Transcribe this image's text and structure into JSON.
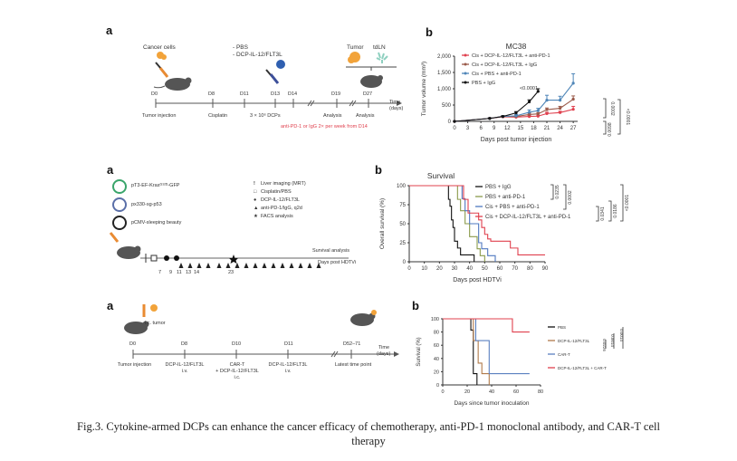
{
  "caption": {
    "line1": "Fig.3. Cytokine-armed DCPs can enhance the cancer efficacy of chemotherapy, anti-PD-1 monoclonal antibody, and CAR-T cell",
    "line2": "therapy"
  },
  "row1": {
    "a": {
      "letter": "a",
      "cancer_cells": "Cancer cells",
      "treatments": [
        "- PBS",
        "- DCP-IL-12/FLT3L"
      ],
      "tumor": "Tumor",
      "tdln": "tdLN",
      "timeline_days": [
        "D0",
        "D8",
        "D11",
        "D13",
        "D14",
        "D19",
        "D27"
      ],
      "time_label": [
        "Time",
        "(days)"
      ],
      "events": [
        "Tumor injection",
        "Cisplatin",
        "3 × 10⁶ DCPs",
        "Analysis",
        "Analysis"
      ],
      "note": "anti-PD-1 or IgG 2× per week from D14"
    },
    "b": {
      "letter": "b"
    }
  },
  "row2": {
    "a": {
      "letter": "a",
      "plasmids": [
        "pT3-EF-Krasᴳ¹²ᴰ-GFP",
        "px330-sg-p53",
        "pCMV-sleeping beauty"
      ],
      "plasmid_colors": [
        "#3aa56b",
        "#5a6fa8",
        "#222222"
      ],
      "legend": [
        {
          "icon": "exclamation-icon",
          "glyph": "!",
          "label": "Liver imaging (MRT)"
        },
        {
          "icon": "open-square-icon",
          "glyph": "□",
          "label": "Cisplatin/PBS"
        },
        {
          "icon": "filled-circle-icon",
          "glyph": "●",
          "label": "DCP-IL-12/FLT3L"
        },
        {
          "icon": "triangle-icon",
          "glyph": "▲",
          "label": "anti-PD-1/IgG, q2d"
        },
        {
          "icon": "star-icon",
          "glyph": "★",
          "label": "FACS analysis"
        }
      ],
      "survival_analysis": "Survival analysis",
      "days_label": "Days post HDTVi",
      "ticks": [
        "7",
        "9",
        "11",
        "13",
        "14",
        "23"
      ]
    },
    "b": {
      "letter": "b"
    }
  },
  "row3": {
    "a": {
      "letter": "a",
      "ic_tumor": "i.c. tumor",
      "days": [
        "D0",
        "D8",
        "D10",
        "D11",
        "D52–71"
      ],
      "time_label": [
        "Time",
        "(days)"
      ],
      "events": [
        [
          "Tumor injection"
        ],
        [
          "DCP-IL-12/FLT3L",
          "i.v."
        ],
        [
          "CAR-T",
          "+ DCP-IL-12/FLT3L",
          "i.c."
        ],
        [
          "DCP-IL-12/FLT3L",
          "i.v."
        ],
        [
          "Latest time point"
        ]
      ]
    },
    "b": {
      "letter": "b"
    }
  },
  "chart_data": [
    {
      "id": "tumor-volume",
      "type": "line",
      "title": "MC38",
      "xlabel": "Days post tumor injection",
      "ylabel": "Tumor volume (mm³)",
      "xlim": [
        0,
        28
      ],
      "ylim": [
        0,
        2000
      ],
      "xticks": [
        0,
        3,
        6,
        9,
        12,
        15,
        18,
        21,
        24,
        27
      ],
      "yticks": [
        0,
        500,
        1000,
        1500,
        2000
      ],
      "ytick_labels": [
        "0",
        "500",
        "1,000",
        "1,500",
        "2,000"
      ],
      "legend_position": "top-left",
      "series": [
        {
          "name": "Cis + DCP-IL-12/FLT3L + anti-PD-1",
          "color": "#e0404e",
          "x": [
            0,
            8,
            11,
            14,
            17,
            19,
            21,
            24,
            27
          ],
          "y": [
            0,
            90,
            140,
            130,
            150,
            160,
            240,
            270,
            370
          ],
          "err": [
            0,
            15,
            20,
            20,
            30,
            30,
            40,
            40,
            90
          ]
        },
        {
          "name": "Cis + DCP-IL-12/FLT3L + IgG",
          "color": "#9a5a4a",
          "x": [
            0,
            8,
            11,
            14,
            17,
            19,
            21,
            24,
            27
          ],
          "y": [
            0,
            90,
            150,
            150,
            210,
            230,
            360,
            400,
            680
          ],
          "err": [
            0,
            15,
            20,
            25,
            40,
            40,
            50,
            60,
            100
          ]
        },
        {
          "name": "Cis + PBS + anti-PD-1",
          "color": "#4f86b8",
          "x": [
            0,
            8,
            11,
            14,
            17,
            19,
            21,
            24,
            27
          ],
          "y": [
            0,
            90,
            150,
            170,
            280,
            330,
            650,
            650,
            1170
          ],
          "err": [
            0,
            15,
            25,
            40,
            70,
            70,
            150,
            120,
            290
          ]
        },
        {
          "name": "PBS + IgG",
          "color": "#111111",
          "x": [
            0,
            8,
            11,
            14,
            17,
            19
          ],
          "y": [
            0,
            90,
            150,
            260,
            600,
            920
          ],
          "err": [
            0,
            15,
            20,
            40,
            60,
            80
          ]
        }
      ],
      "annotations": [
        {
          "text": "<0.0001",
          "target": "PBS + IgG vs others"
        },
        {
          "text": "0.0002",
          "bracket": "Cis+PBS+anti-PD-1 vs Cis+DCP+anti-PD-1"
        },
        {
          "text": "0.0098",
          "bracket": "Cis+DCP+IgG vs Cis+DCP+anti-PD-1"
        },
        {
          "text": "<0.0001",
          "bracket": "outer"
        }
      ]
    },
    {
      "id": "survival-hdtvi",
      "type": "line",
      "step": true,
      "title": "Survival",
      "xlabel": "Days post HDTVi",
      "ylabel": "Overall survival (%)",
      "xlim": [
        0,
        90
      ],
      "ylim": [
        0,
        100
      ],
      "xticks": [
        0,
        10,
        20,
        30,
        40,
        50,
        60,
        70,
        80,
        90
      ],
      "yticks": [
        0,
        25,
        50,
        75,
        100
      ],
      "legend_position": "top-right",
      "series": [
        {
          "name": "PBS + IgG",
          "color": "#111111",
          "x": [
            0,
            26,
            27,
            28,
            29,
            30,
            32,
            34,
            36,
            43
          ],
          "y": [
            100,
            82,
            73,
            55,
            45,
            27,
            18,
            9,
            9,
            0
          ]
        },
        {
          "name": "PBS + anti-PD-1",
          "color": "#8a9a4a",
          "x": [
            0,
            32,
            34,
            37,
            40,
            45,
            47,
            50
          ],
          "y": [
            100,
            82,
            67,
            50,
            33,
            17,
            8,
            0
          ]
        },
        {
          "name": "Cis + PBS + anti-PD-1",
          "color": "#4f78c0",
          "x": [
            0,
            35,
            37,
            40,
            46,
            48,
            52,
            57
          ],
          "y": [
            100,
            83,
            67,
            50,
            25,
            17,
            8,
            0
          ]
        },
        {
          "name": "Cis + DCP-IL-12/FLT3L + anti-PD-1",
          "color": "#e0404e",
          "x": [
            0,
            36,
            39,
            46,
            48,
            50,
            52,
            54,
            67,
            72,
            90
          ],
          "y": [
            100,
            82,
            64,
            55,
            45,
            36,
            30,
            27,
            18,
            9,
            9
          ]
        }
      ],
      "annotations": [
        {
          "text": "0.0235"
        },
        {
          "text": "0.0002"
        },
        {
          "text": "0.0341"
        },
        {
          "text": "0.0186"
        },
        {
          "text": "<0.0001"
        }
      ]
    },
    {
      "id": "survival-car-t",
      "type": "line",
      "step": true,
      "title": "",
      "xlabel": "Days since tumor inoculation",
      "ylabel": "Survival (%)",
      "xlim": [
        0,
        80
      ],
      "ylim": [
        0,
        100
      ],
      "xticks": [
        0,
        20,
        40,
        60,
        80
      ],
      "yticks": [
        0,
        20,
        40,
        60,
        80,
        100
      ],
      "legend_position": "right",
      "series": [
        {
          "name": "PBS",
          "color": "#111111",
          "x": [
            0,
            23,
            25,
            28
          ],
          "y": [
            100,
            83,
            17,
            0
          ]
        },
        {
          "name": "DCP-IL-12/FLT3L",
          "color": "#b07a4a",
          "x": [
            0,
            25,
            29,
            32,
            38
          ],
          "y": [
            100,
            67,
            33,
            17,
            0
          ]
        },
        {
          "name": "CAR-T",
          "color": "#5a80c0",
          "x": [
            0,
            27,
            38,
            71
          ],
          "y": [
            100,
            67,
            17,
            17
          ]
        },
        {
          "name": "DCP-IL-12/FLT3L + CAR-T",
          "color": "#e0404e",
          "x": [
            0,
            57,
            71
          ],
          "y": [
            100,
            80,
            80
          ]
        }
      ],
      "annotations": [
        {
          "text": "0.0014"
        },
        {
          "text": "0.0014"
        },
        {
          "text": "0.0226"
        }
      ]
    }
  ]
}
